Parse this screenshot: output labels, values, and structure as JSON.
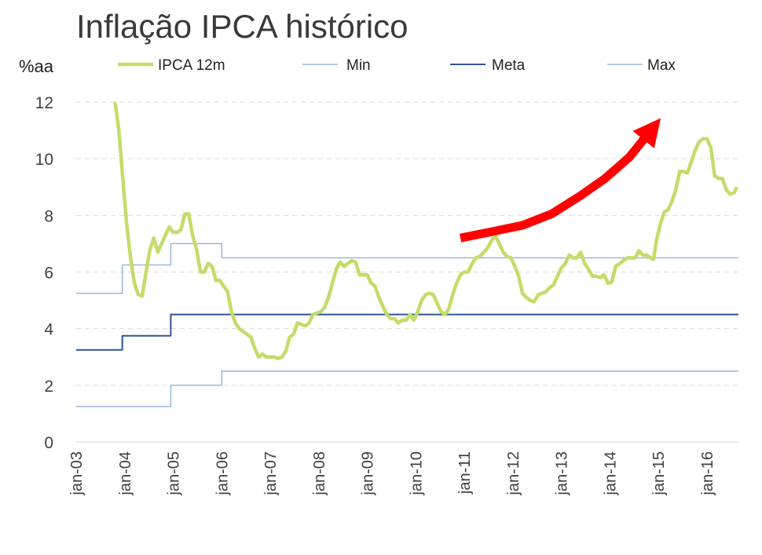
{
  "chart_data": {
    "type": "line",
    "title": "Inflação IPCA histórico",
    "ylabel": "%aa",
    "ylim": [
      0,
      12
    ],
    "y_ticks": [
      "0",
      "2",
      "4",
      "6",
      "8",
      "10",
      "12"
    ],
    "x_ticks": [
      "jan-03",
      "jan-04",
      "jan-05",
      "jan-06",
      "jan-07",
      "jan-08",
      "jan-09",
      "jan-10",
      "jan-11",
      "jan-12",
      "jan-13",
      "jan-14",
      "jan-15",
      "jan-16"
    ],
    "xlim": [
      2003.0,
      2016.65
    ],
    "grid": "horizontal dashed",
    "legend_position": "top",
    "series": [
      {
        "name": "IPCA 12m",
        "color": "#c3dc6a",
        "points": [
          [
            2003.8,
            12.0
          ],
          [
            2003.88,
            11.0
          ],
          [
            2003.96,
            9.3
          ],
          [
            2004.04,
            7.7
          ],
          [
            2004.12,
            6.5
          ],
          [
            2004.2,
            5.6
          ],
          [
            2004.28,
            5.2
          ],
          [
            2004.36,
            5.15
          ],
          [
            2004.44,
            6.0
          ],
          [
            2004.52,
            6.8
          ],
          [
            2004.6,
            7.2
          ],
          [
            2004.68,
            6.7
          ],
          [
            2004.76,
            7.0
          ],
          [
            2004.84,
            7.3
          ],
          [
            2004.92,
            7.6
          ],
          [
            2005.0,
            7.4
          ],
          [
            2005.08,
            7.4
          ],
          [
            2005.16,
            7.5
          ],
          [
            2005.24,
            8.05
          ],
          [
            2005.32,
            8.05
          ],
          [
            2005.4,
            7.3
          ],
          [
            2005.48,
            6.8
          ],
          [
            2005.56,
            6.0
          ],
          [
            2005.64,
            6.0
          ],
          [
            2005.72,
            6.3
          ],
          [
            2005.8,
            6.2
          ],
          [
            2005.88,
            5.7
          ],
          [
            2005.96,
            5.7
          ],
          [
            2006.04,
            5.5
          ],
          [
            2006.12,
            5.3
          ],
          [
            2006.2,
            4.6
          ],
          [
            2006.28,
            4.2
          ],
          [
            2006.36,
            4.0
          ],
          [
            2006.44,
            3.9
          ],
          [
            2006.52,
            3.8
          ],
          [
            2006.6,
            3.7
          ],
          [
            2006.68,
            3.3
          ],
          [
            2006.76,
            3.0
          ],
          [
            2006.84,
            3.1
          ],
          [
            2006.92,
            3.0
          ],
          [
            2007.0,
            3.0
          ],
          [
            2007.08,
            3.0
          ],
          [
            2007.16,
            2.95
          ],
          [
            2007.24,
            3.0
          ],
          [
            2007.32,
            3.2
          ],
          [
            2007.4,
            3.7
          ],
          [
            2007.48,
            3.8
          ],
          [
            2007.56,
            4.2
          ],
          [
            2007.64,
            4.15
          ],
          [
            2007.72,
            4.1
          ],
          [
            2007.8,
            4.2
          ],
          [
            2007.88,
            4.5
          ],
          [
            2007.96,
            4.55
          ],
          [
            2008.04,
            4.6
          ],
          [
            2008.12,
            4.75
          ],
          [
            2008.2,
            5.1
          ],
          [
            2008.28,
            5.6
          ],
          [
            2008.36,
            6.1
          ],
          [
            2008.44,
            6.35
          ],
          [
            2008.52,
            6.2
          ],
          [
            2008.6,
            6.3
          ],
          [
            2008.68,
            6.4
          ],
          [
            2008.76,
            6.35
          ],
          [
            2008.84,
            5.9
          ],
          [
            2008.92,
            5.9
          ],
          [
            2009.0,
            5.9
          ],
          [
            2009.08,
            5.6
          ],
          [
            2009.16,
            5.5
          ],
          [
            2009.24,
            5.1
          ],
          [
            2009.32,
            4.8
          ],
          [
            2009.4,
            4.5
          ],
          [
            2009.48,
            4.35
          ],
          [
            2009.56,
            4.35
          ],
          [
            2009.64,
            4.2
          ],
          [
            2009.72,
            4.3
          ],
          [
            2009.8,
            4.3
          ],
          [
            2009.88,
            4.5
          ],
          [
            2009.96,
            4.3
          ],
          [
            2010.04,
            4.6
          ],
          [
            2010.12,
            5.0
          ],
          [
            2010.2,
            5.2
          ],
          [
            2010.28,
            5.25
          ],
          [
            2010.36,
            5.2
          ],
          [
            2010.44,
            4.9
          ],
          [
            2010.52,
            4.6
          ],
          [
            2010.6,
            4.5
          ],
          [
            2010.68,
            4.7
          ],
          [
            2010.76,
            5.2
          ],
          [
            2010.84,
            5.6
          ],
          [
            2010.92,
            5.9
          ],
          [
            2011.0,
            6.0
          ],
          [
            2011.08,
            6.0
          ],
          [
            2011.16,
            6.3
          ],
          [
            2011.24,
            6.5
          ],
          [
            2011.32,
            6.55
          ],
          [
            2011.4,
            6.7
          ],
          [
            2011.48,
            6.85
          ],
          [
            2011.56,
            7.1
          ],
          [
            2011.64,
            7.3
          ],
          [
            2011.72,
            7.0
          ],
          [
            2011.8,
            6.7
          ],
          [
            2011.88,
            6.55
          ],
          [
            2011.96,
            6.5
          ],
          [
            2012.04,
            6.2
          ],
          [
            2012.12,
            5.85
          ],
          [
            2012.2,
            5.25
          ],
          [
            2012.28,
            5.1
          ],
          [
            2012.36,
            5.0
          ],
          [
            2012.44,
            4.95
          ],
          [
            2012.52,
            5.2
          ],
          [
            2012.6,
            5.25
          ],
          [
            2012.68,
            5.3
          ],
          [
            2012.76,
            5.45
          ],
          [
            2012.84,
            5.55
          ],
          [
            2012.92,
            5.85
          ],
          [
            2013.0,
            6.15
          ],
          [
            2013.08,
            6.3
          ],
          [
            2013.16,
            6.6
          ],
          [
            2013.24,
            6.5
          ],
          [
            2013.32,
            6.5
          ],
          [
            2013.4,
            6.7
          ],
          [
            2013.48,
            6.3
          ],
          [
            2013.56,
            6.1
          ],
          [
            2013.64,
            5.85
          ],
          [
            2013.72,
            5.85
          ],
          [
            2013.8,
            5.8
          ],
          [
            2013.88,
            5.9
          ],
          [
            2013.96,
            5.6
          ],
          [
            2014.04,
            5.65
          ],
          [
            2014.12,
            6.2
          ],
          [
            2014.2,
            6.3
          ],
          [
            2014.28,
            6.4
          ],
          [
            2014.36,
            6.5
          ],
          [
            2014.44,
            6.5
          ],
          [
            2014.52,
            6.5
          ],
          [
            2014.6,
            6.75
          ],
          [
            2014.68,
            6.6
          ],
          [
            2014.76,
            6.6
          ],
          [
            2014.84,
            6.5
          ],
          [
            2014.9,
            6.45
          ],
          [
            2014.96,
            7.1
          ],
          [
            2015.04,
            7.7
          ],
          [
            2015.12,
            8.1
          ],
          [
            2015.2,
            8.2
          ],
          [
            2015.28,
            8.5
          ],
          [
            2015.36,
            8.9
          ],
          [
            2015.44,
            9.55
          ],
          [
            2015.52,
            9.55
          ],
          [
            2015.6,
            9.5
          ],
          [
            2015.68,
            9.9
          ],
          [
            2015.76,
            10.3
          ],
          [
            2015.84,
            10.6
          ],
          [
            2015.92,
            10.7
          ],
          [
            2016.0,
            10.7
          ],
          [
            2016.08,
            10.4
          ],
          [
            2016.16,
            9.4
          ],
          [
            2016.24,
            9.3
          ],
          [
            2016.32,
            9.3
          ],
          [
            2016.4,
            8.9
          ],
          [
            2016.48,
            8.75
          ],
          [
            2016.56,
            8.8
          ],
          [
            2016.62,
            9.0
          ]
        ]
      },
      {
        "name": "Min",
        "color": "#9bb7d9",
        "points": [
          [
            2003.0,
            1.25
          ],
          [
            2004.95,
            1.25
          ],
          [
            2004.95,
            2.0
          ],
          [
            2006.0,
            2.0
          ],
          [
            2006.0,
            2.5
          ],
          [
            2016.65,
            2.5
          ]
        ]
      },
      {
        "name": "Meta",
        "color": "#2f5597",
        "points": [
          [
            2003.0,
            3.25
          ],
          [
            2003.95,
            3.25
          ],
          [
            2003.95,
            3.75
          ],
          [
            2004.95,
            3.75
          ],
          [
            2004.95,
            4.5
          ],
          [
            2016.65,
            4.5
          ]
        ]
      },
      {
        "name": "Max",
        "color": "#9bb7d9",
        "points": [
          [
            2003.0,
            5.25
          ],
          [
            2003.95,
            5.25
          ],
          [
            2003.95,
            6.25
          ],
          [
            2004.95,
            6.25
          ],
          [
            2004.95,
            7.0
          ],
          [
            2006.0,
            7.0
          ],
          [
            2006.0,
            6.5
          ],
          [
            2016.65,
            6.5
          ]
        ]
      }
    ],
    "annotations": [
      {
        "kind": "arrow",
        "color": "#ff0000",
        "points": [
          [
            2010.92,
            7.2
          ],
          [
            2011.5,
            7.4
          ],
          [
            2012.2,
            7.65
          ],
          [
            2012.8,
            8.05
          ],
          [
            2013.4,
            8.7
          ],
          [
            2013.9,
            9.3
          ],
          [
            2014.4,
            10.05
          ],
          [
            2014.8,
            10.9
          ]
        ]
      }
    ]
  }
}
